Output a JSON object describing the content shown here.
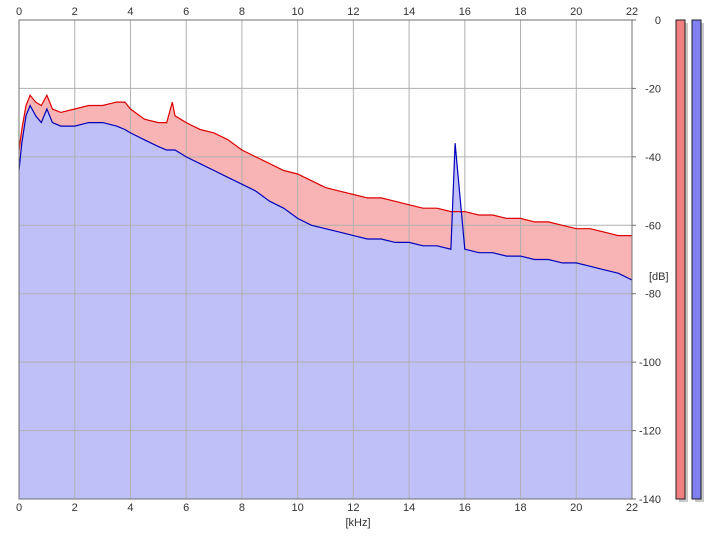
{
  "chart_data": {
    "type": "area",
    "xlabel": "[kHz]",
    "ylabel": "[dB]",
    "xlim": [
      0,
      22
    ],
    "ylim": [
      -140,
      0
    ],
    "x_ticks": [
      "0",
      "2",
      "4",
      "6",
      "8",
      "10",
      "12",
      "14",
      "16",
      "18",
      "20",
      "22"
    ],
    "y_ticks": [
      "0",
      "-20",
      "-40",
      "-60",
      "-80",
      "-100",
      "-120",
      "-140"
    ],
    "grid": true,
    "series": [
      {
        "color": "#dd0000",
        "fill": "#f8b4b4",
        "x": [
          0,
          0.1,
          0.25,
          0.4,
          0.6,
          0.8,
          1.0,
          1.2,
          1.5,
          2.0,
          2.5,
          3.0,
          3.5,
          3.8,
          4.0,
          4.5,
          5.0,
          5.3,
          5.5,
          5.6,
          5.8,
          6.0,
          6.5,
          7.0,
          7.5,
          8.0,
          8.5,
          9.0,
          9.5,
          10.0,
          10.5,
          11.0,
          11.5,
          12.0,
          12.5,
          13.0,
          13.5,
          14.0,
          14.5,
          15.0,
          15.5,
          16.0,
          16.5,
          17.0,
          17.5,
          18.0,
          18.5,
          19.0,
          19.5,
          20.0,
          20.5,
          21.0,
          21.5,
          22.0
        ],
        "values": [
          -38,
          -32,
          -25,
          -22,
          -24,
          -25,
          -22,
          -26,
          -27,
          -26,
          -25,
          -25,
          -24,
          -24,
          -26,
          -29,
          -30,
          -30,
          -24,
          -28,
          -29,
          -30,
          -32,
          -33,
          -35,
          -38,
          -40,
          -42,
          -44,
          -45,
          -47,
          -49,
          -50,
          -51,
          -52,
          -52,
          -53,
          -54,
          -55,
          -55,
          -56,
          -56,
          -57,
          -57,
          -58,
          -58,
          -59,
          -59,
          -60,
          -61,
          -61,
          -62,
          -63,
          -63
        ]
      },
      {
        "color": "#0000bb",
        "fill": "#c0c0f8",
        "x": [
          0,
          0.1,
          0.25,
          0.4,
          0.6,
          0.8,
          1.0,
          1.2,
          1.5,
          2.0,
          2.5,
          3.0,
          3.5,
          3.8,
          4.0,
          4.5,
          5.0,
          5.3,
          5.5,
          5.6,
          5.8,
          6.0,
          6.5,
          7.0,
          7.5,
          8.0,
          8.5,
          9.0,
          9.5,
          10.0,
          10.5,
          11.0,
          11.5,
          12.0,
          12.5,
          13.0,
          13.5,
          14.0,
          14.5,
          15.0,
          15.5,
          15.65,
          16.0,
          16.5,
          17.0,
          17.5,
          18.0,
          18.5,
          19.0,
          19.5,
          20.0,
          20.5,
          21.0,
          21.5,
          22.0
        ],
        "values": [
          -44,
          -36,
          -28,
          -25,
          -28,
          -30,
          -26,
          -30,
          -31,
          -31,
          -30,
          -30,
          -31,
          -32,
          -33,
          -35,
          -37,
          -38,
          -38,
          -38,
          -39,
          -40,
          -42,
          -44,
          -46,
          -48,
          -50,
          -53,
          -55,
          -58,
          -60,
          -61,
          -62,
          -63,
          -64,
          -64,
          -65,
          -65,
          -66,
          -66,
          -67,
          -36,
          -67,
          -68,
          -68,
          -69,
          -69,
          -70,
          -70,
          -71,
          -71,
          -72,
          -73,
          -74,
          -76
        ]
      }
    ],
    "level_meters": [
      {
        "channel_color": "#f08080",
        "level": 1.0
      },
      {
        "channel_color": "#8080f0",
        "level": 1.0
      }
    ],
    "colors": {
      "grid": "#b0b0b0",
      "axis": "#707070",
      "tick_text": "#333333"
    }
  }
}
